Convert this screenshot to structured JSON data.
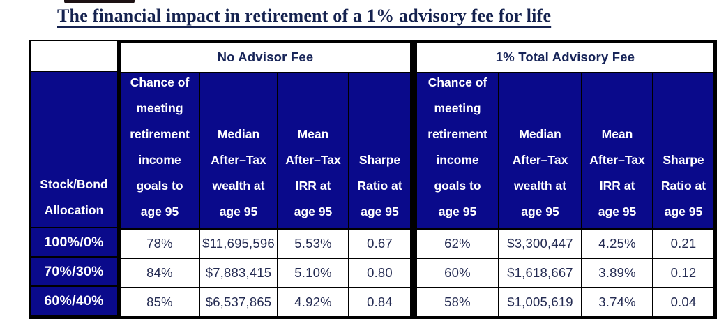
{
  "chart_data": {
    "type": "table",
    "title": "The financial impact in retirement of a 1% advisory fee for life",
    "row_label_header_lines": [
      "Stock/Bond",
      "Allocation"
    ],
    "groups": [
      {
        "label": "No Advisor Fee",
        "column_header_lines": [
          [
            "Chance of",
            "meeting",
            "retirement",
            "income",
            "goals to",
            "age 95"
          ],
          [
            "Median",
            "After–Tax",
            "wealth at",
            "age 95"
          ],
          [
            "Mean",
            "After–Tax",
            "IRR at",
            "age 95"
          ],
          [
            "Sharpe",
            "Ratio at",
            "age 95"
          ]
        ]
      },
      {
        "label": "1% Total Advisory Fee",
        "column_header_lines": [
          [
            "Chance of",
            "meeting",
            "retirement",
            "income",
            "goals to",
            "age 95"
          ],
          [
            "Median",
            "After–Tax",
            "wealth at",
            "age 95"
          ],
          [
            "Mean",
            "After–Tax",
            "IRR at",
            "age 95"
          ],
          [
            "Sharpe",
            "Ratio at",
            "age 95"
          ]
        ]
      }
    ],
    "rows": [
      {
        "allocation": "100%/0%",
        "values": [
          [
            "78%",
            "$11,695,596",
            "5.53%",
            "0.67"
          ],
          [
            "62%",
            "$3,300,447",
            "4.25%",
            "0.21"
          ]
        ]
      },
      {
        "allocation": "70%/30%",
        "values": [
          [
            "84%",
            "$7,883,415",
            "5.10%",
            "0.80"
          ],
          [
            "60%",
            "$1,618,667",
            "3.89%",
            "0.12"
          ]
        ]
      },
      {
        "allocation": "60%/40%",
        "values": [
          [
            "85%",
            "$6,537,865",
            "4.92%",
            "0.84"
          ],
          [
            "58%",
            "$1,005,619",
            "3.74%",
            "0.04"
          ]
        ]
      }
    ],
    "colors": {
      "header_fill": "#0A0A8B",
      "header_text": "#FFFFFF",
      "body_text": "#242B52",
      "group_header_text": "#172458",
      "title_text": "#15224F",
      "border": "#000000"
    },
    "layout": "two column groups of four metrics each, three allocation rows"
  }
}
